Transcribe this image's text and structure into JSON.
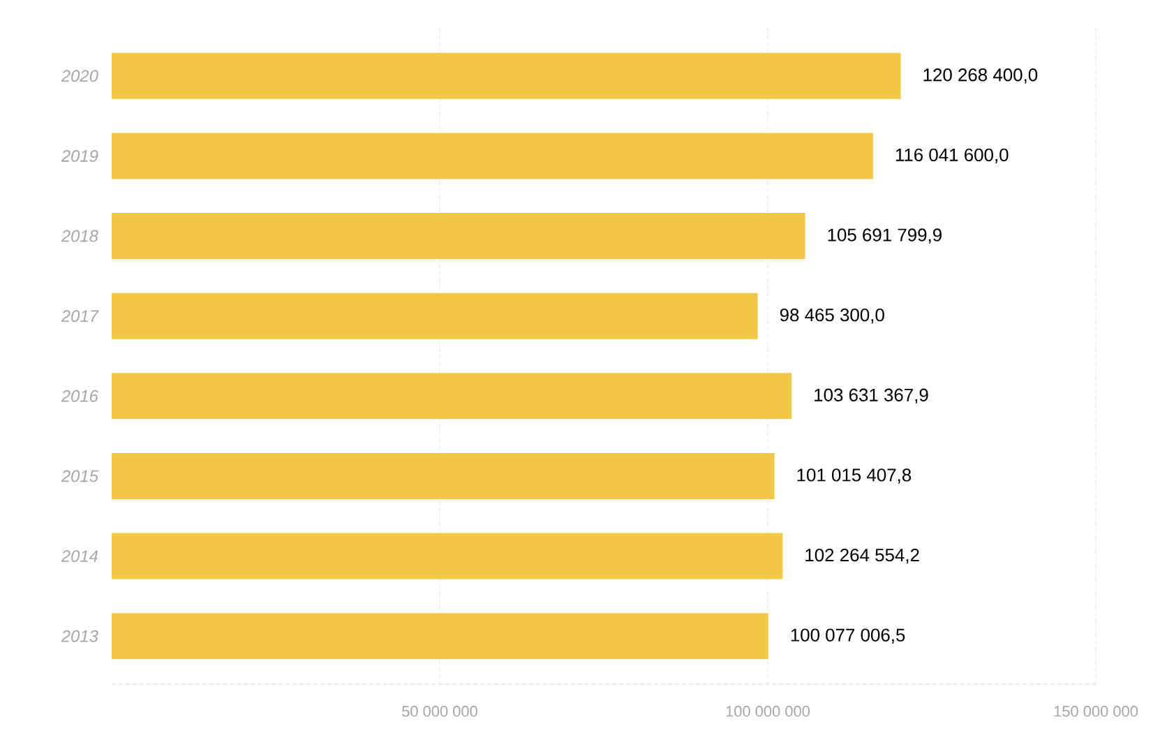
{
  "chart_data": {
    "type": "bar",
    "orientation": "horizontal",
    "categories": [
      "2020",
      "2019",
      "2018",
      "2017",
      "2016",
      "2015",
      "2014",
      "2013"
    ],
    "values": [
      120268400.0,
      116041600.0,
      105691799.9,
      98465300.0,
      103631367.9,
      101015407.8,
      102264554.2,
      100077006.5
    ],
    "value_labels": [
      "120 268 400,0",
      "116 041 600,0",
      "105 691 799,9",
      "98 465 300,0",
      "103 631 367,9",
      "101 015 407,8",
      "102 264 554,2",
      "100 077 006,5"
    ],
    "color": "#f2c744",
    "xlim": [
      0,
      150000000
    ],
    "xticks": [
      {
        "value": 50000000,
        "label": "50 000 000"
      },
      {
        "value": 100000000,
        "label": "100 000 000"
      },
      {
        "value": 150000000,
        "label": "150 000 000"
      }
    ],
    "grid": "x"
  }
}
